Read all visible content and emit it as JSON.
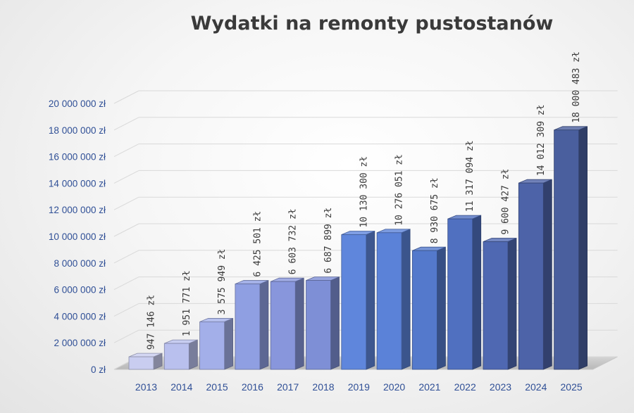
{
  "chart_data": {
    "type": "bar",
    "title": "Wydatki na remonty pustostanów",
    "xlabel": "",
    "ylabel": "",
    "categories": [
      "2013",
      "2014",
      "2015",
      "2016",
      "2017",
      "2018",
      "2019",
      "2020",
      "2021",
      "2022",
      "2023",
      "2024",
      "2025"
    ],
    "values": [
      947146,
      1951771,
      3575949,
      6425501,
      6603732,
      6687899,
      10130300,
      10276051,
      8930675,
      11317094,
      9600427,
      14012309,
      18000483
    ],
    "value_labels": [
      "947 146 zł",
      "1 951 771 zł",
      "3 575 949 zł",
      "6 425 501 zł",
      "6 603 732 zł",
      "6 687 899 zł",
      "10 130 300 zł",
      "10 276 051 zł",
      "8 930 675 zł",
      "11 317 094 zł",
      "9 600 427 zł",
      "14 012 309 zł",
      "18 000 483 zł"
    ],
    "y_ticks": [
      0,
      2000000,
      4000000,
      6000000,
      8000000,
      10000000,
      12000000,
      14000000,
      16000000,
      18000000,
      20000000
    ],
    "y_tick_labels": [
      "0 zł",
      "2 000 000 zł",
      "4 000 000 zł",
      "6 000 000 zł",
      "8 000 000 zł",
      "10 000 000 zł",
      "12 000 000 zł",
      "14 000 000 zł",
      "16 000 000 zł",
      "18 000 000 zł",
      "20 000 000 zł"
    ],
    "ylim": [
      0,
      20000000
    ],
    "grid": true,
    "style": "3d-columns",
    "bar_colors": [
      "#c9cdf0",
      "#b9c0ee",
      "#a3afe9",
      "#8f9fe2",
      "#8896dc",
      "#7e8fd6",
      "#5f86dc",
      "#5b82d8",
      "#5479cc",
      "#5070c0",
      "#4f68b2",
      "#4d63a8",
      "#4a5f9e"
    ]
  }
}
